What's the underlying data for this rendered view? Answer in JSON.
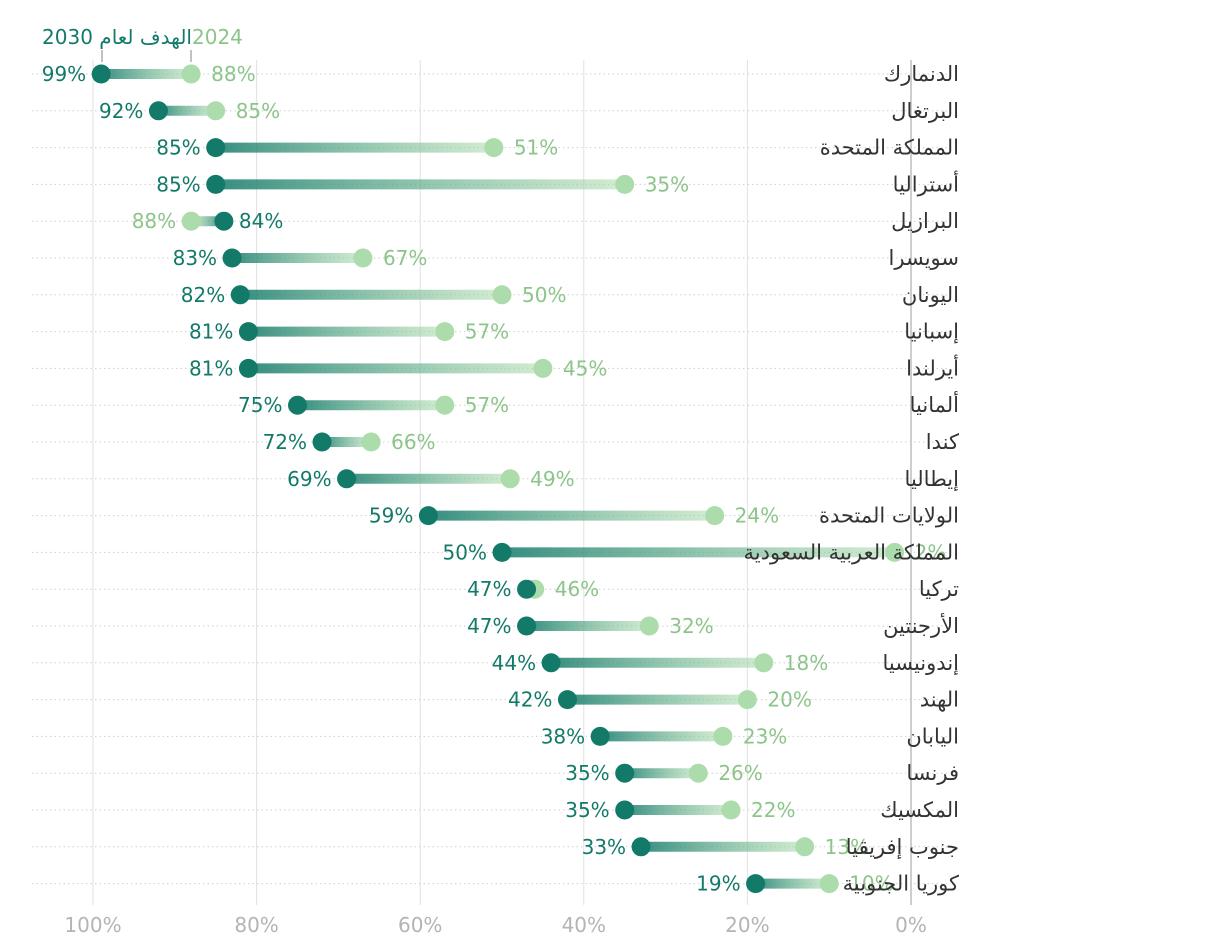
{
  "chart_data": {
    "type": "dumbbell",
    "title": "",
    "xlabel": "",
    "ylabel": "",
    "x_direction": "reversed",
    "xlim": [
      0,
      100
    ],
    "x_ticks": [
      100,
      80,
      60,
      40,
      20,
      0
    ],
    "x_tick_labels": [
      "100%",
      "80%",
      "60%",
      "40%",
      "20%",
      "0%"
    ],
    "legend": {
      "target_label": "الهدف لعام 2030",
      "current_label": "2024",
      "placement": "top-left"
    },
    "colors": {
      "target": "#137a6a",
      "current": "#acdcab",
      "grid": "#e2e2e2",
      "zero_line": "#bdbdbd",
      "row_line": "#cfcfcf",
      "tick_text": "#b4b4b4",
      "country_text": "#333333"
    },
    "categories": [
      "الدنمارك",
      "البرتغال",
      "المملكة المتحدة",
      "أستراليا",
      "البرازيل",
      "سويسرا",
      "اليونان",
      "إسبانيا",
      "أيرلندا",
      "ألمانيا",
      "كندا",
      "إيطاليا",
      "الولايات المتحدة",
      "المملكة العربية السعودية",
      "تركيا",
      "الأرجنتين",
      "إندونيسيا",
      "الهند",
      "اليابان",
      "فرنسا",
      "المكسيك",
      "جنوب إفريقيا",
      "كوريا الجنوبية"
    ],
    "series": [
      {
        "name": "الهدف لعام 2030",
        "values": [
          99,
          92,
          85,
          85,
          84,
          83,
          82,
          81,
          81,
          75,
          72,
          69,
          59,
          50,
          47,
          47,
          44,
          42,
          38,
          35,
          35,
          33,
          19
        ]
      },
      {
        "name": "2024",
        "values": [
          88,
          85,
          51,
          35,
          88,
          67,
          50,
          57,
          45,
          57,
          66,
          49,
          24,
          2,
          46,
          32,
          18,
          20,
          23,
          26,
          22,
          13,
          10
        ]
      }
    ]
  }
}
